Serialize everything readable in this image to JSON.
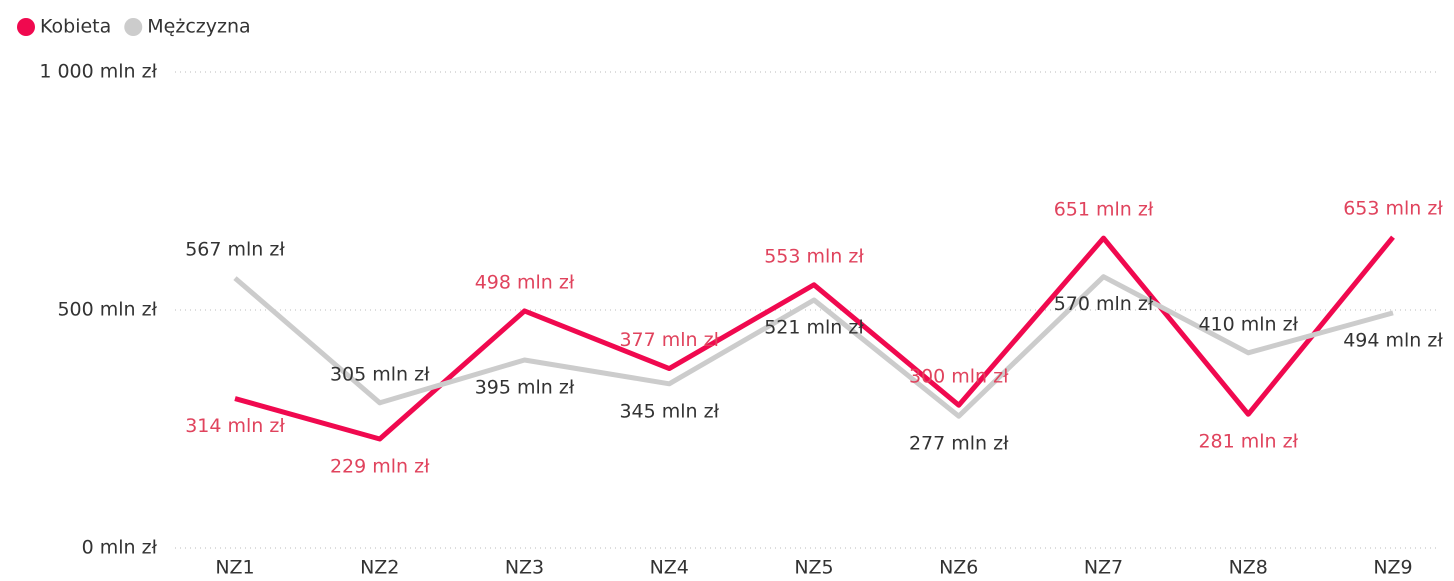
{
  "chart_data": {
    "type": "line",
    "categories": [
      "NZ1",
      "NZ2",
      "NZ3",
      "NZ4",
      "NZ5",
      "NZ6",
      "NZ7",
      "NZ8",
      "NZ9"
    ],
    "series": [
      {
        "name": "Kobieta",
        "color": "#f0094f",
        "label_color": "#e0435d",
        "values": [
          314,
          229,
          498,
          377,
          553,
          300,
          651,
          281,
          653
        ],
        "value_labels": [
          "314 mln zł",
          "229 mln zł",
          "498 mln zł",
          "377 mln zł",
          "553 mln zł",
          "300 mln zł",
          "651 mln zł",
          "281 mln zł",
          "653 mln zł"
        ]
      },
      {
        "name": "Mężczyzna",
        "color": "#cccccc",
        "label_color": "#333333",
        "values": [
          567,
          305,
          395,
          345,
          521,
          277,
          570,
          410,
          494
        ],
        "value_labels": [
          "567 mln zł",
          "305 mln zł",
          "395 mln zł",
          "345 mln zł",
          "521 mln zł",
          "277 mln zł",
          "570 mln zł",
          "410 mln zł",
          "494 mln zł"
        ]
      }
    ],
    "ylim": [
      0,
      1000
    ],
    "yticks": [
      {
        "value": 0,
        "label": "0 mln zł"
      },
      {
        "value": 500,
        "label": "500 mln zł"
      },
      {
        "value": 1000,
        "label": "1 000 mln zł"
      }
    ],
    "grid": true,
    "legend": "top-left"
  }
}
